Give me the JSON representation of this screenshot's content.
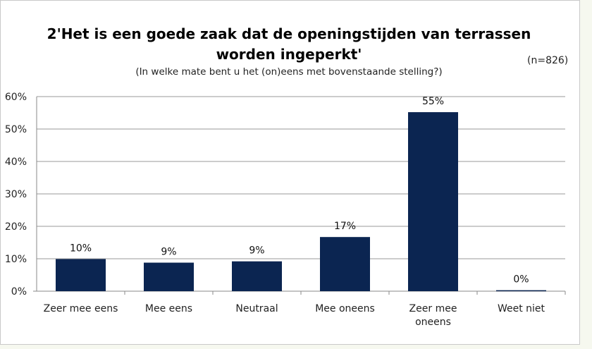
{
  "chart_data": {
    "type": "bar",
    "title_line1": "2'Het is een goede zaak dat de openingstijden van terrassen",
    "title_line2": "worden ingeperkt'",
    "subtitle": "(In welke mate bent u het (on)eens met bovenstaande stelling?)",
    "sample_size": "(n=826)",
    "categories": [
      [
        "Zeer mee eens"
      ],
      [
        "Mee eens"
      ],
      [
        "Neutraal"
      ],
      [
        "Mee oneens"
      ],
      [
        "Zeer mee",
        "oneens"
      ],
      [
        "Weet niet"
      ]
    ],
    "values": [
      10,
      9,
      9,
      17,
      55,
      0
    ],
    "exact_values": [
      9.9,
      8.8,
      9.2,
      16.7,
      55.2,
      0.3
    ],
    "data_labels": [
      "10%",
      "9%",
      "9%",
      "17%",
      "55%",
      "0%"
    ],
    "ylim": [
      0,
      60
    ],
    "yticks": [
      0,
      10,
      20,
      30,
      40,
      50,
      60
    ],
    "ytick_labels": [
      "0%",
      "10%",
      "20%",
      "30%",
      "40%",
      "50%",
      "60%"
    ],
    "grid": true,
    "legend": "none",
    "bar_color": "#0b2551"
  }
}
